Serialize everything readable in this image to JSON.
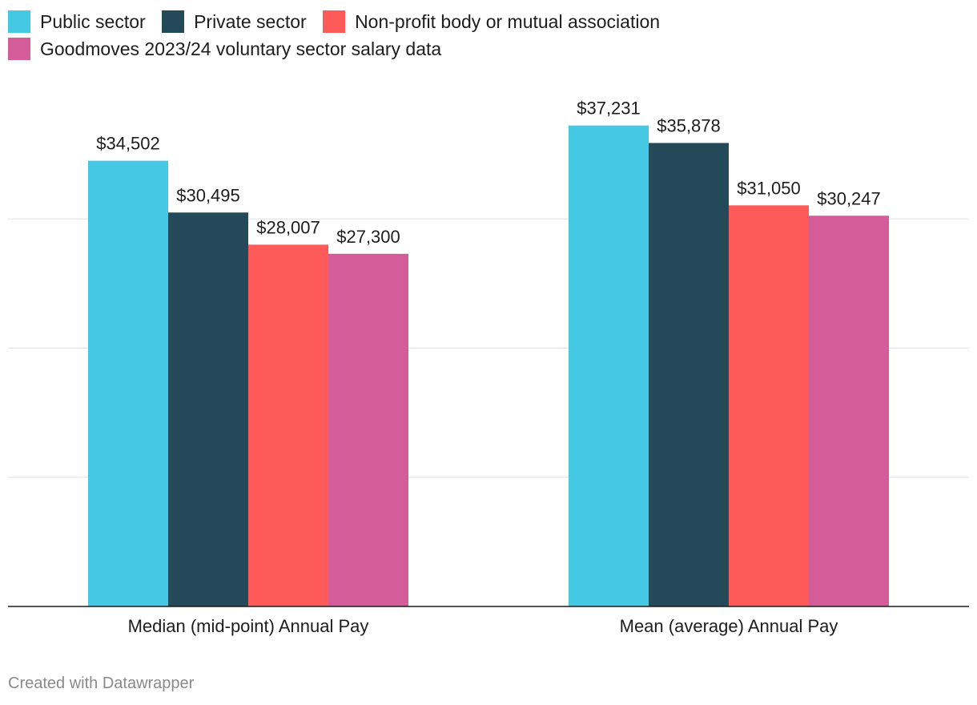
{
  "chart_data": {
    "type": "bar",
    "categories": [
      "Median (mid-point) Annual Pay",
      "Mean (average) Annual Pay"
    ],
    "series": [
      {
        "name": "Public sector",
        "color": "#45c8e3",
        "values": [
          34502,
          37231
        ],
        "labels": [
          "$34,502",
          "$37,231"
        ]
      },
      {
        "name": "Private sector",
        "color": "#244a5a",
        "values": [
          30495,
          35878
        ],
        "labels": [
          "$30,495",
          "$35,878"
        ]
      },
      {
        "name": "Non-profit body or mutual association",
        "color": "#ff5a5a",
        "values": [
          28007,
          31050
        ],
        "labels": [
          "$28,007",
          "$31,050"
        ]
      },
      {
        "name": "Goodmoves 2023/24 voluntary sector salary data",
        "color": "#d45d99",
        "values": [
          27300,
          30247
        ],
        "labels": [
          "$27,300",
          "$30,247"
        ]
      }
    ],
    "ylim": [
      0,
      40000
    ],
    "gridlines": [
      10000,
      20000,
      30000
    ],
    "legend_position": "top-left",
    "grid": true
  },
  "footer": {
    "credit": "Created with Datawrapper"
  }
}
